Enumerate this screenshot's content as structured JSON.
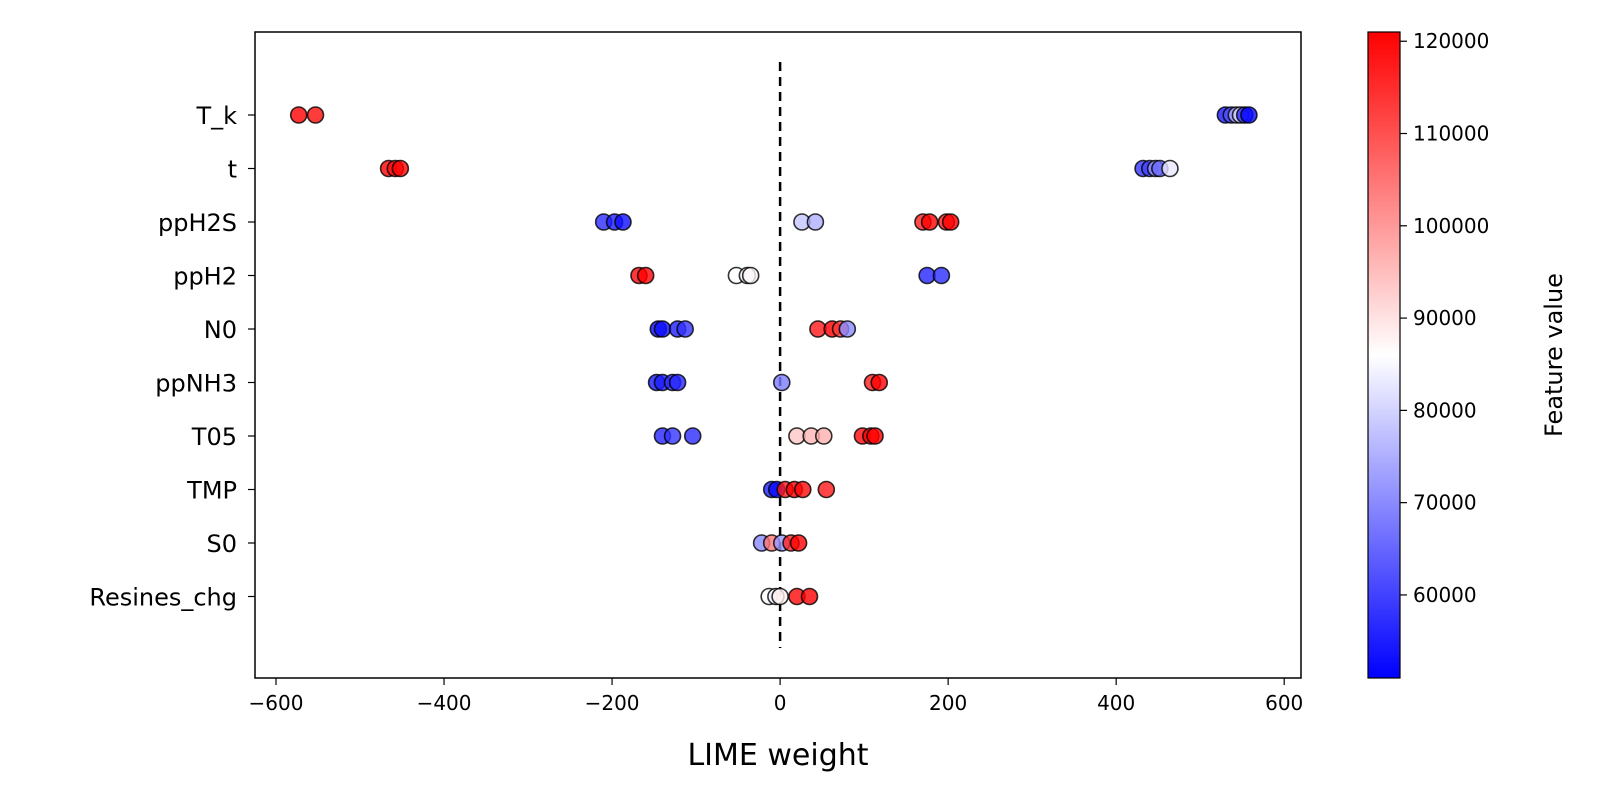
{
  "chart_data": {
    "type": "scatter",
    "title": "",
    "xlabel": "LIME weight",
    "ylabel": "",
    "xlim": [
      -625,
      620
    ],
    "xticks": [
      -600,
      -400,
      -200,
      0,
      200,
      400,
      600
    ],
    "xtick_labels": [
      "−600",
      "−400",
      "−200",
      "0",
      "200",
      "400",
      "600"
    ],
    "reference_line": {
      "x": 0,
      "style": "dashed",
      "color": "#000000"
    },
    "grid": false,
    "features": [
      "T_k",
      "t",
      "ppH2S",
      "ppH2",
      "N0",
      "ppNH3",
      "T05",
      "TMP",
      "S0",
      "Resines_chg"
    ],
    "colorbar": {
      "label": "Feature value",
      "colormap": "bwr",
      "vmin": 51000,
      "vmax": 121000,
      "ticks": [
        60000,
        70000,
        80000,
        90000,
        100000,
        110000,
        120000
      ],
      "tick_labels": [
        "60000",
        "70000",
        "80000",
        "90000",
        "100000",
        "110000",
        "120000"
      ],
      "low_color": "#0000ff",
      "mid_color": "#ffffff",
      "high_color": "#ff0000"
    },
    "points": [
      {
        "feature": "T_k",
        "x": -573,
        "value": 121000
      },
      {
        "feature": "T_k",
        "x": -553,
        "value": 119500
      },
      {
        "feature": "T_k",
        "x": 530,
        "value": 54000
      },
      {
        "feature": "T_k",
        "x": 537,
        "value": 62000
      },
      {
        "feature": "T_k",
        "x": 543,
        "value": 75000
      },
      {
        "feature": "T_k",
        "x": 548,
        "value": 80000
      },
      {
        "feature": "T_k",
        "x": 553,
        "value": 57000
      },
      {
        "feature": "T_k",
        "x": 558,
        "value": 52000
      },
      {
        "feature": "t",
        "x": -466,
        "value": 121000
      },
      {
        "feature": "t",
        "x": -458,
        "value": 119000
      },
      {
        "feature": "t",
        "x": -452,
        "value": 121000
      },
      {
        "feature": "t",
        "x": 432,
        "value": 58000
      },
      {
        "feature": "t",
        "x": 440,
        "value": 60000
      },
      {
        "feature": "t",
        "x": 447,
        "value": 72000
      },
      {
        "feature": "t",
        "x": 452,
        "value": 65000
      },
      {
        "feature": "t",
        "x": 464,
        "value": 83000
      },
      {
        "feature": "ppH2S",
        "x": -210,
        "value": 57000
      },
      {
        "feature": "ppH2S",
        "x": -197,
        "value": 55000
      },
      {
        "feature": "ppH2S",
        "x": -187,
        "value": 53000
      },
      {
        "feature": "ppH2S",
        "x": 26,
        "value": 78000
      },
      {
        "feature": "ppH2S",
        "x": 42,
        "value": 75000
      },
      {
        "feature": "ppH2S",
        "x": 170,
        "value": 117000
      },
      {
        "feature": "ppH2S",
        "x": 178,
        "value": 121000
      },
      {
        "feature": "ppH2S",
        "x": 198,
        "value": 118000
      },
      {
        "feature": "ppH2S",
        "x": 203,
        "value": 121000
      },
      {
        "feature": "ppH2",
        "x": -168,
        "value": 120000
      },
      {
        "feature": "ppH2",
        "x": -160,
        "value": 121000
      },
      {
        "feature": "ppH2",
        "x": -52,
        "value": 86000
      },
      {
        "feature": "ppH2",
        "x": -39,
        "value": 84000
      },
      {
        "feature": "ppH2",
        "x": -35,
        "value": 87000
      },
      {
        "feature": "ppH2",
        "x": 175,
        "value": 56000
      },
      {
        "feature": "ppH2",
        "x": 192,
        "value": 57000
      },
      {
        "feature": "N0",
        "x": -145,
        "value": 52000
      },
      {
        "feature": "N0",
        "x": -140,
        "value": 53000
      },
      {
        "feature": "N0",
        "x": -122,
        "value": 55000
      },
      {
        "feature": "N0",
        "x": -113,
        "value": 58000
      },
      {
        "feature": "N0",
        "x": 45,
        "value": 118000
      },
      {
        "feature": "N0",
        "x": 62,
        "value": 121000
      },
      {
        "feature": "N0",
        "x": 72,
        "value": 113000
      },
      {
        "feature": "N0",
        "x": 80,
        "value": 70000
      },
      {
        "feature": "ppNH3",
        "x": -147,
        "value": 54000
      },
      {
        "feature": "ppNH3",
        "x": -140,
        "value": 55000
      },
      {
        "feature": "ppNH3",
        "x": -128,
        "value": 57000
      },
      {
        "feature": "ppNH3",
        "x": -122,
        "value": 56000
      },
      {
        "feature": "ppNH3",
        "x": 2,
        "value": 68000
      },
      {
        "feature": "ppNH3",
        "x": 110,
        "value": 117000
      },
      {
        "feature": "ppNH3",
        "x": 118,
        "value": 121000
      },
      {
        "feature": "T05",
        "x": -140,
        "value": 56000
      },
      {
        "feature": "T05",
        "x": -128,
        "value": 58000
      },
      {
        "feature": "T05",
        "x": -104,
        "value": 57000
      },
      {
        "feature": "T05",
        "x": 20,
        "value": 94000
      },
      {
        "feature": "T05",
        "x": 37,
        "value": 96000
      },
      {
        "feature": "T05",
        "x": 52,
        "value": 97000
      },
      {
        "feature": "T05",
        "x": 98,
        "value": 120000
      },
      {
        "feature": "T05",
        "x": 108,
        "value": 121000
      },
      {
        "feature": "T05",
        "x": 113,
        "value": 121000
      },
      {
        "feature": "TMP",
        "x": -10,
        "value": 55000
      },
      {
        "feature": "TMP",
        "x": -4,
        "value": 52000
      },
      {
        "feature": "TMP",
        "x": 6,
        "value": 118000
      },
      {
        "feature": "TMP",
        "x": 17,
        "value": 121000
      },
      {
        "feature": "TMP",
        "x": 27,
        "value": 120000
      },
      {
        "feature": "TMP",
        "x": 55,
        "value": 118000
      },
      {
        "feature": "S0",
        "x": -22,
        "value": 70000
      },
      {
        "feature": "S0",
        "x": -10,
        "value": 105000
      },
      {
        "feature": "S0",
        "x": 2,
        "value": 72000
      },
      {
        "feature": "S0",
        "x": 13,
        "value": 116000
      },
      {
        "feature": "S0",
        "x": 22,
        "value": 121000
      },
      {
        "feature": "Resines_chg",
        "x": -13,
        "value": 86000
      },
      {
        "feature": "Resines_chg",
        "x": -5,
        "value": 84000
      },
      {
        "feature": "Resines_chg",
        "x": 0,
        "value": 88000
      },
      {
        "feature": "Resines_chg",
        "x": 20,
        "value": 120000
      },
      {
        "feature": "Resines_chg",
        "x": 35,
        "value": 121000
      }
    ]
  }
}
